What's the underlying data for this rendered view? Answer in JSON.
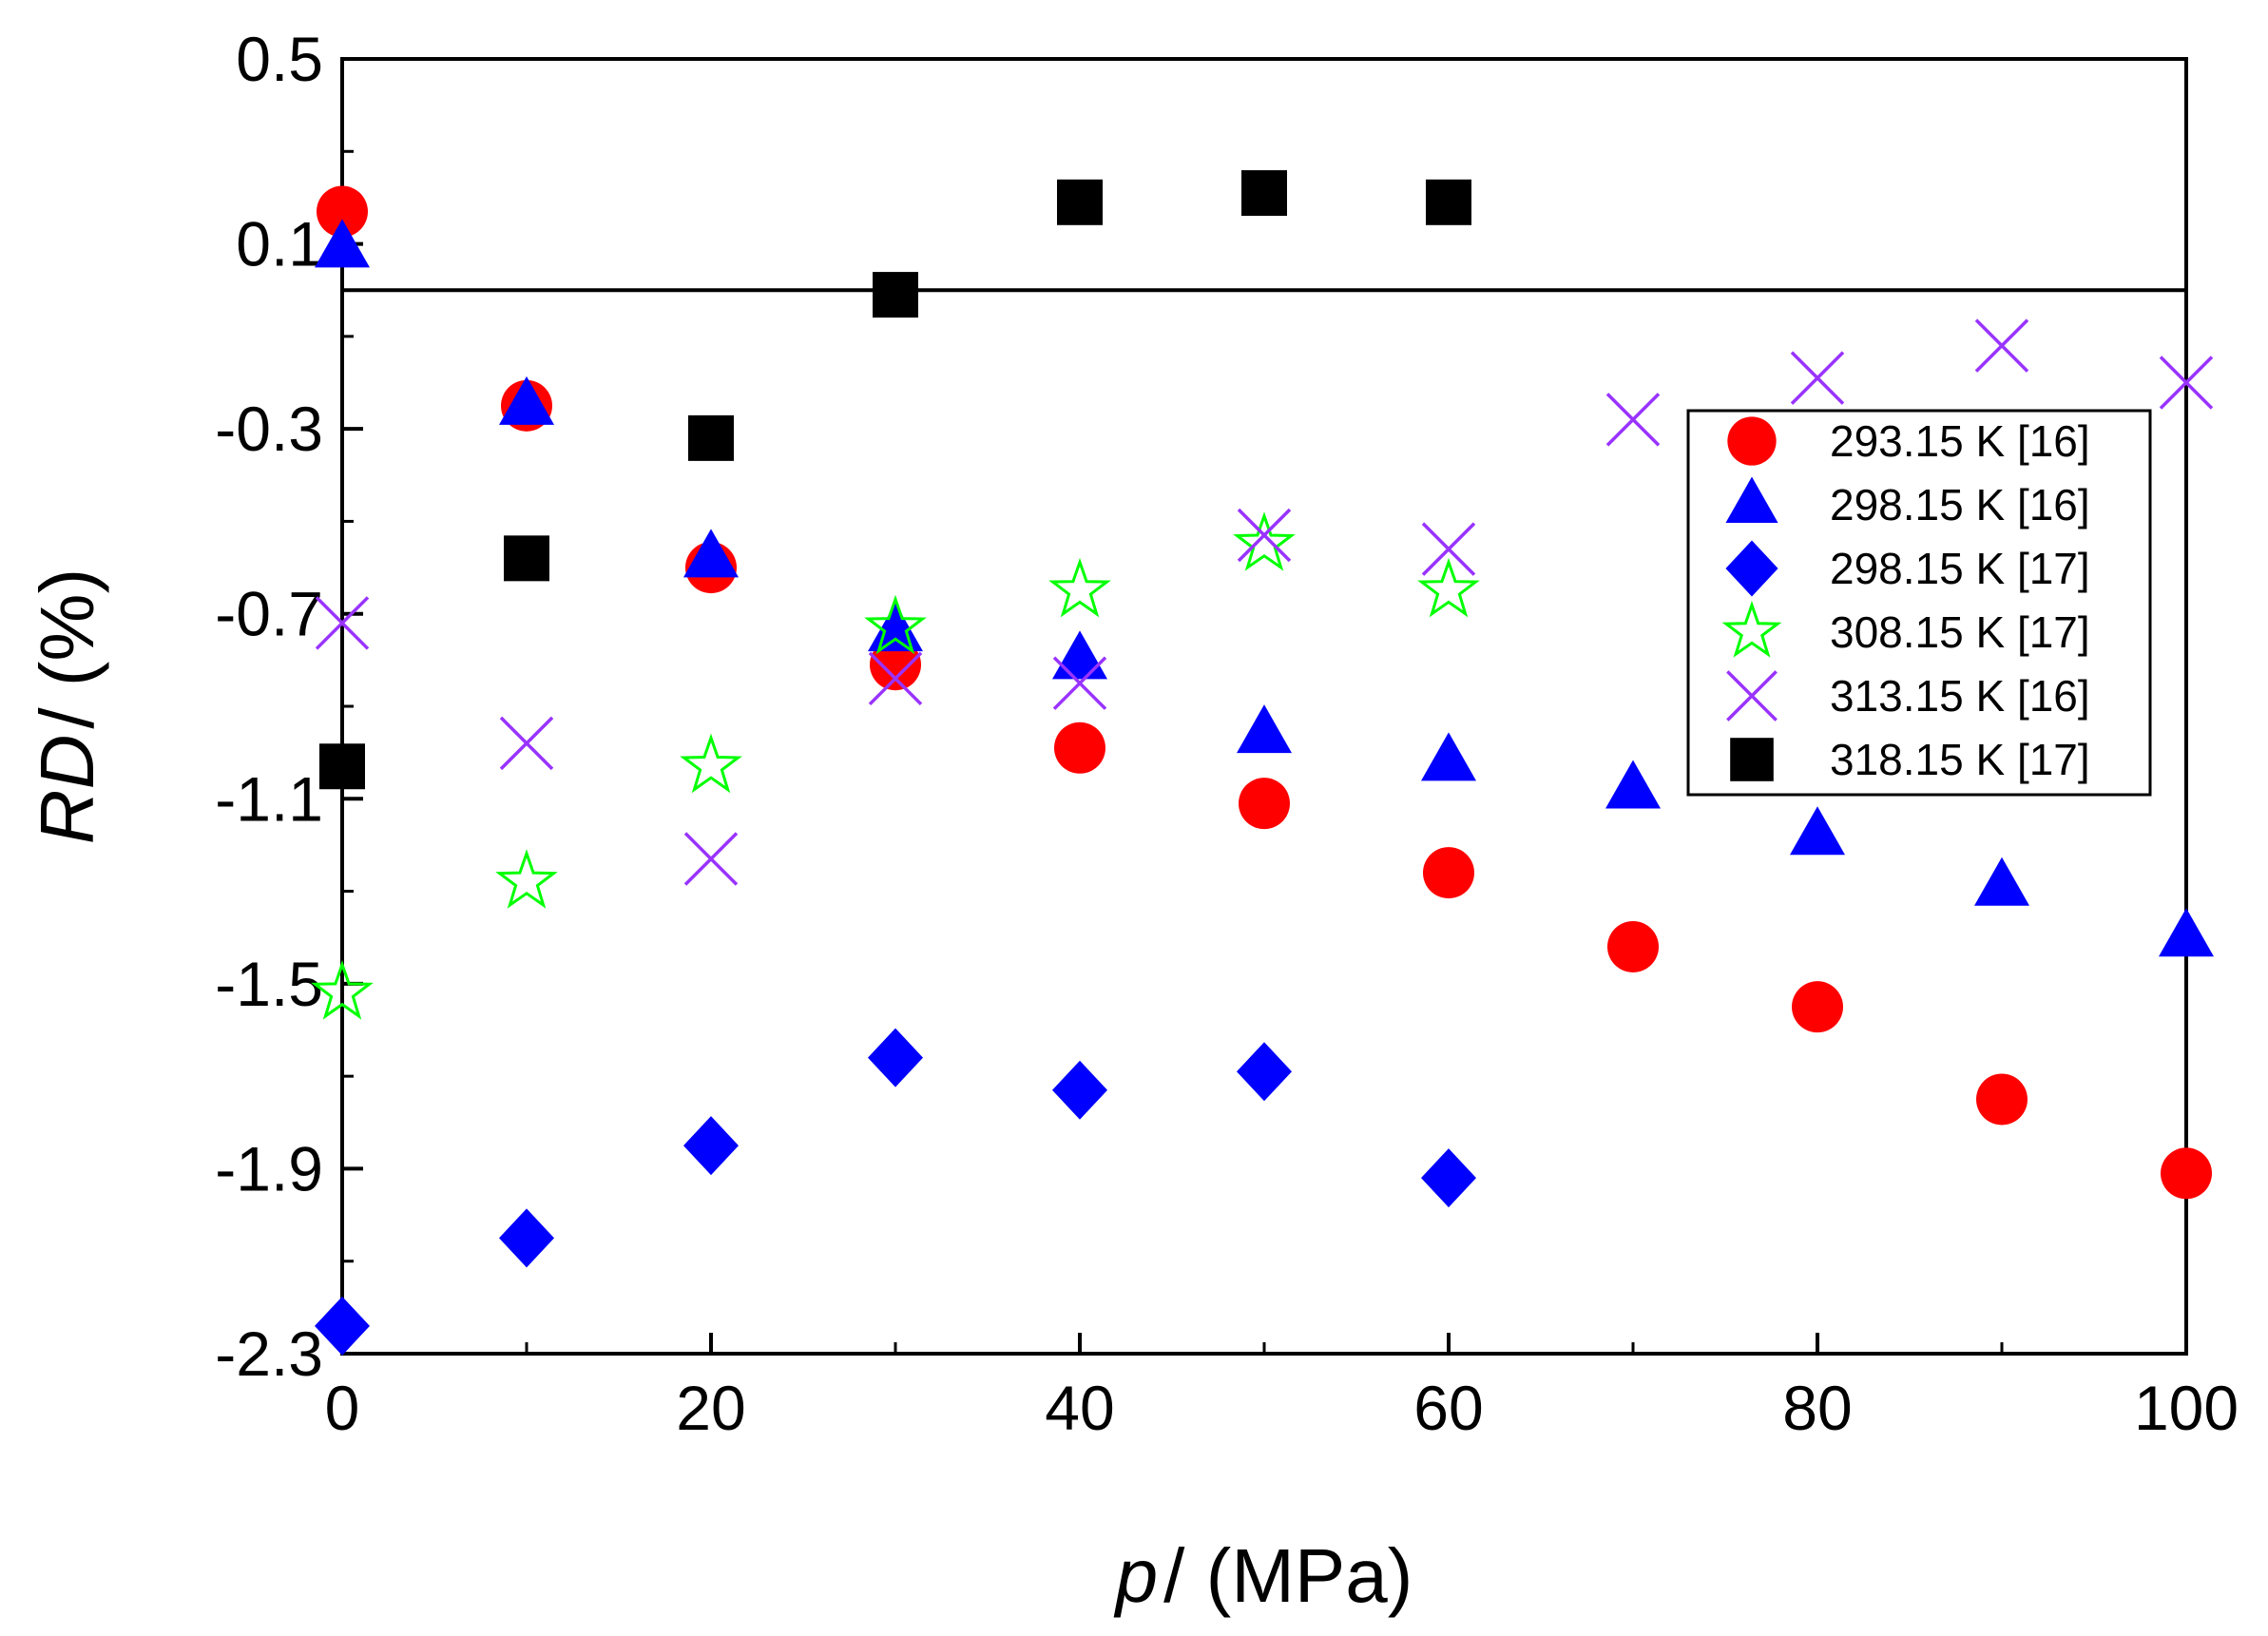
{
  "chart_data": {
    "type": "scatter",
    "title": "",
    "xlabel": {
      "var": "p",
      "unit": "/ (MPa)"
    },
    "ylabel": {
      "var": "RD",
      "unit": "/ (%)"
    },
    "xlim": [
      0,
      100
    ],
    "ylim": [
      -2.3,
      0.5
    ],
    "xticks": [
      0,
      20,
      40,
      60,
      80,
      100
    ],
    "xtick_labels": [
      "0",
      "20",
      "40",
      "60",
      "80",
      "100"
    ],
    "yticks": [
      0.5,
      0.1,
      -0.3,
      -0.7,
      -1.1,
      -1.5,
      -1.9,
      -2.3
    ],
    "ytick_labels": [
      "0.5",
      "0.1",
      "-0.3",
      "-0.7",
      "-1.1",
      "-1.5",
      "-1.9",
      "-2.3"
    ],
    "reference_line_y": 0,
    "grid": false,
    "legend_position": "right",
    "series": [
      {
        "name": "293.15 K [16]",
        "marker": "circle",
        "color": "#ff0000",
        "x": [
          0,
          10,
          20,
          30,
          40,
          50,
          60,
          70,
          80,
          90,
          100
        ],
        "y": [
          0.17,
          -0.25,
          -0.6,
          -0.81,
          -0.99,
          -1.11,
          -1.26,
          -1.42,
          -1.55,
          -1.75,
          -1.91
        ]
      },
      {
        "name": "298.15 K [16]",
        "marker": "triangle",
        "color": "#0000ff",
        "x": [
          0,
          10,
          20,
          30,
          40,
          50,
          60,
          70,
          80,
          90,
          100
        ],
        "y": [
          0.09,
          -0.25,
          -0.58,
          -0.74,
          -0.8,
          -0.96,
          -1.02,
          -1.08,
          -1.18,
          -1.29,
          -1.4
        ]
      },
      {
        "name": "298.15 K [17]",
        "marker": "diamond",
        "color": "#0000ff",
        "x": [
          0,
          10,
          20,
          30,
          40,
          50,
          60
        ],
        "y": [
          -2.24,
          -2.05,
          -1.85,
          -1.66,
          -1.73,
          -1.69,
          -1.92
        ]
      },
      {
        "name": "308.15 K [17]",
        "marker": "star",
        "color": "#00ff00",
        "x": [
          0,
          10,
          20,
          30,
          40,
          50,
          60
        ],
        "y": [
          -1.52,
          -1.28,
          -1.03,
          -0.73,
          -0.65,
          -0.55,
          -0.65
        ]
      },
      {
        "name": "313.15 K [16]",
        "marker": "cross",
        "color": "#9933ff",
        "x": [
          0,
          10,
          20,
          30,
          40,
          50,
          60,
          70,
          80,
          90,
          100
        ],
        "y": [
          -0.72,
          -0.98,
          -1.23,
          -0.84,
          -0.85,
          -0.53,
          -0.56,
          -0.28,
          -0.19,
          -0.12,
          -0.2
        ]
      },
      {
        "name": "318.15 K [17]",
        "marker": "square",
        "color": "#000000",
        "x": [
          0,
          10,
          20,
          30,
          40,
          50,
          60
        ],
        "y": [
          -1.03,
          -0.58,
          -0.32,
          -0.01,
          0.19,
          0.21,
          0.19
        ]
      }
    ]
  }
}
